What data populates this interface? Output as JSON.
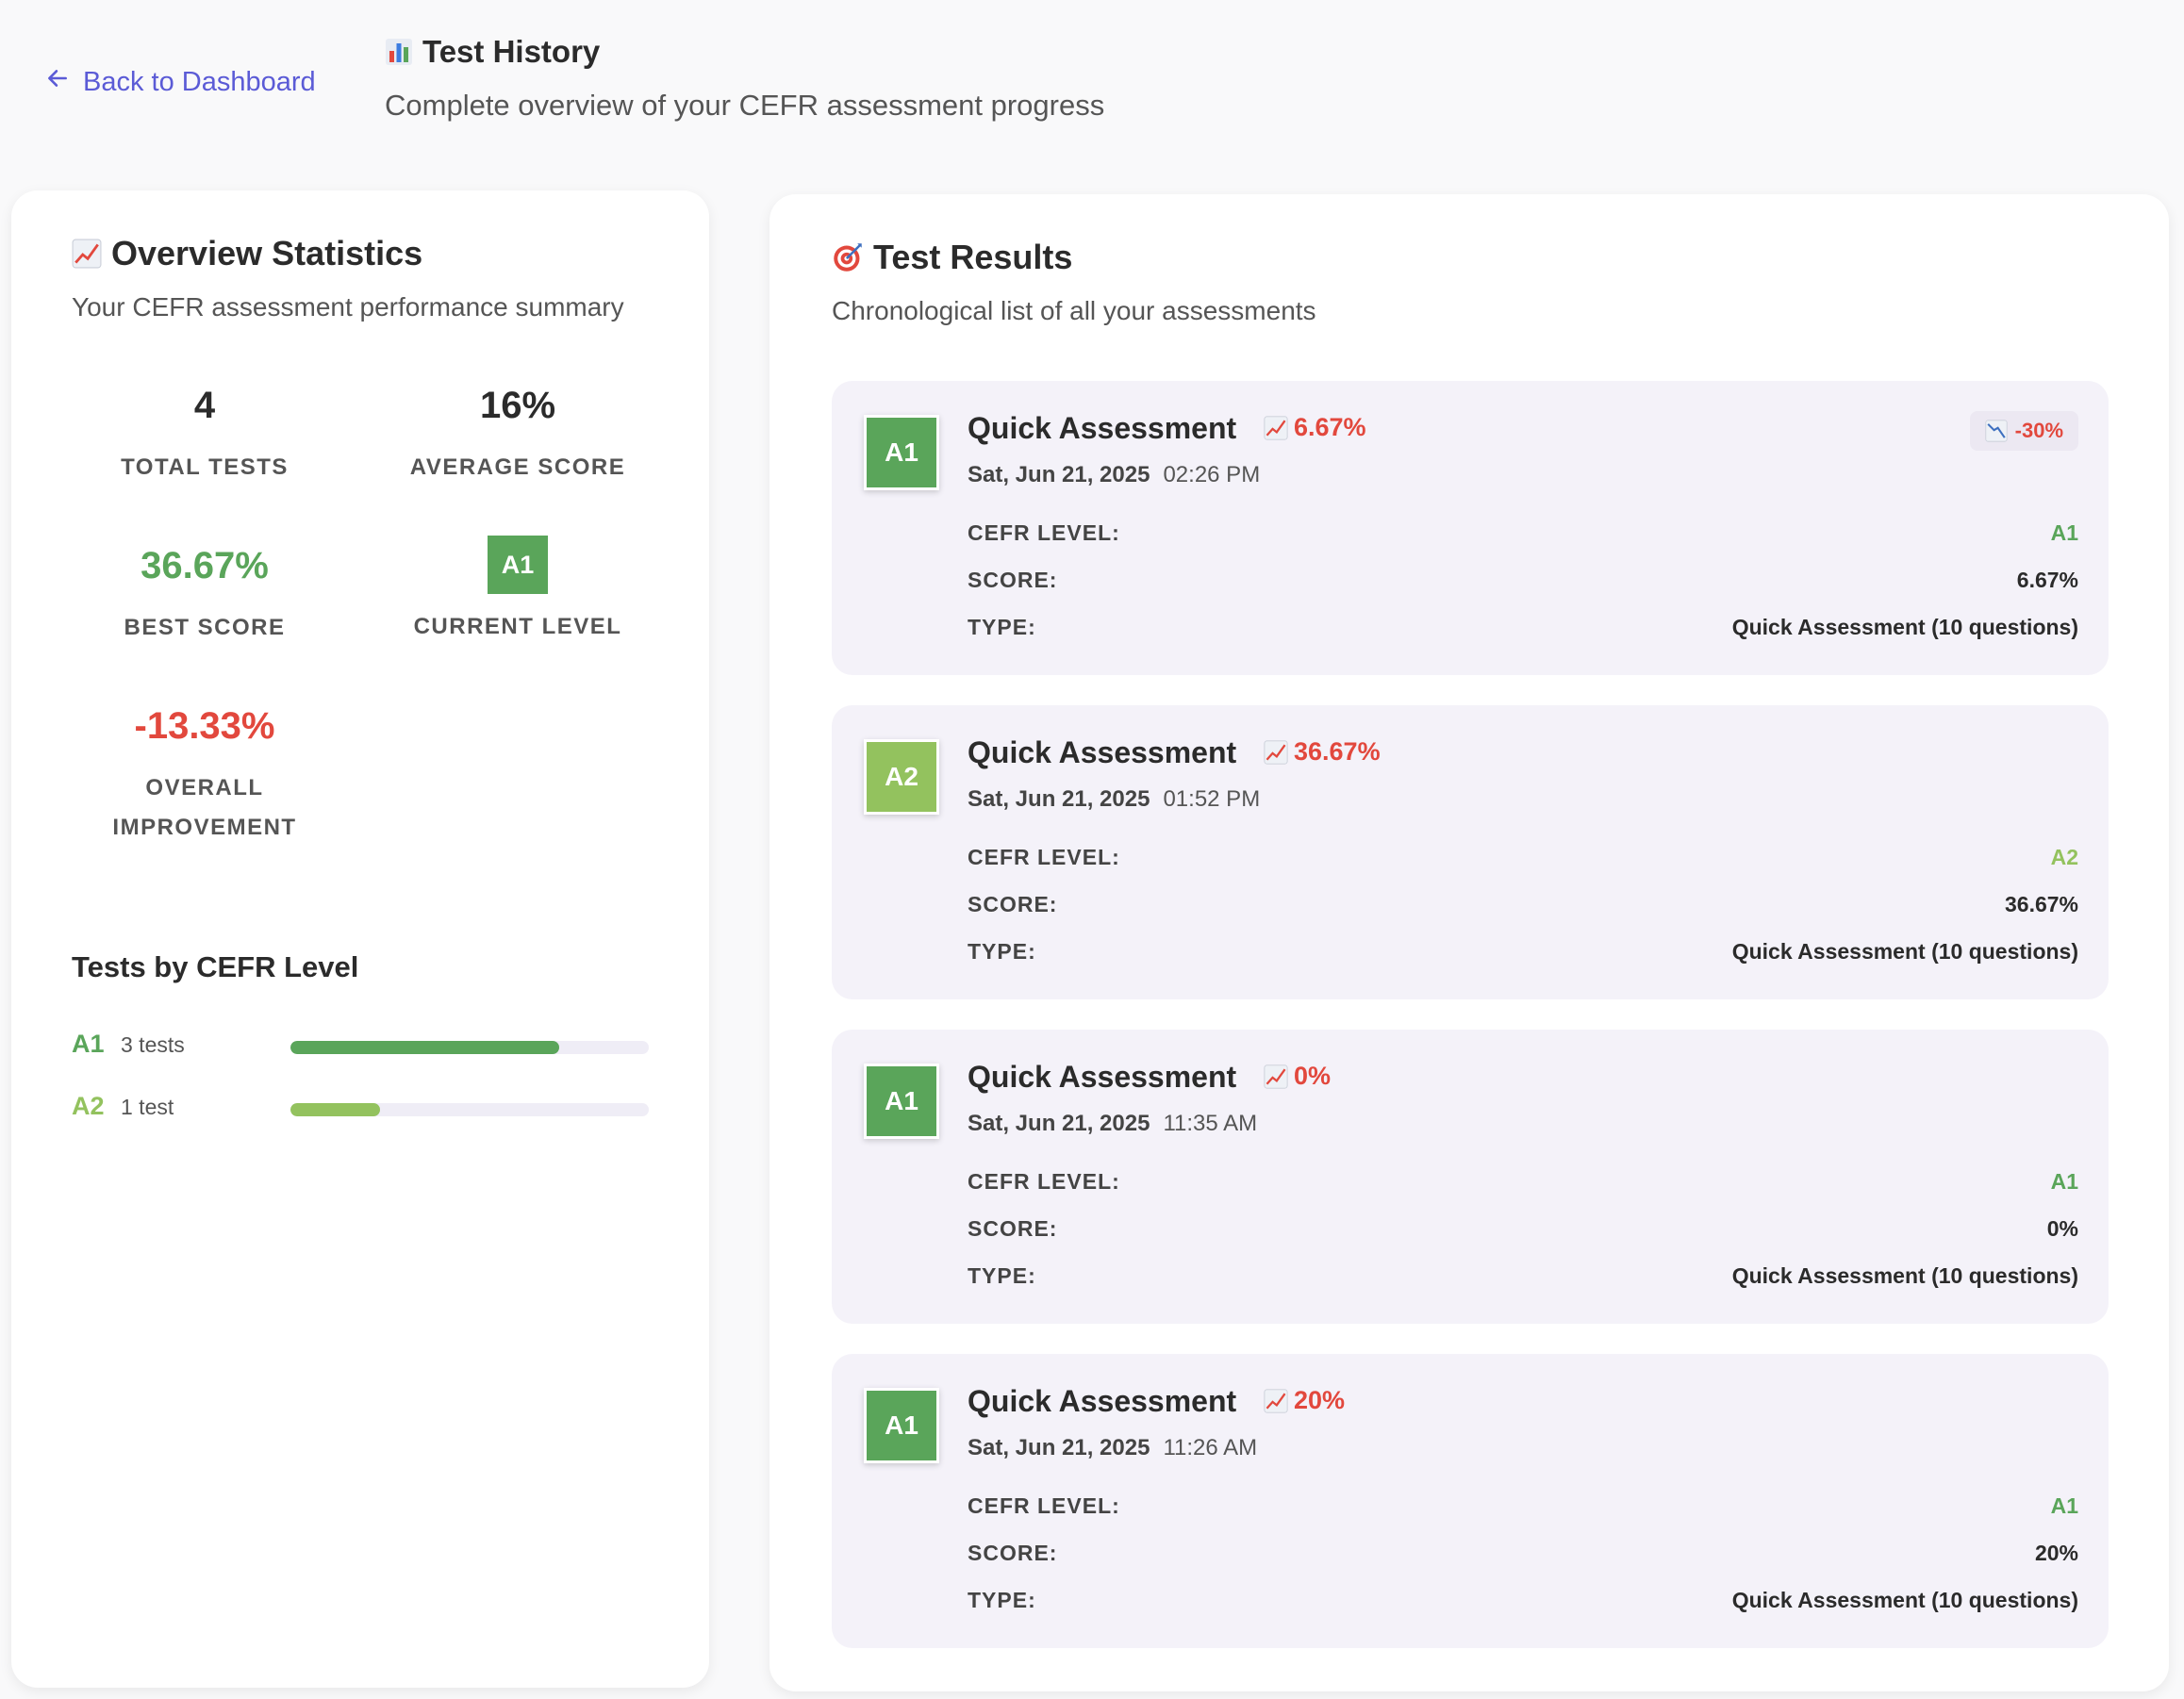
{
  "header": {
    "back_label": "Back to Dashboard",
    "title": "Test History",
    "subtitle": "Complete overview of your CEFR assessment progress"
  },
  "overview": {
    "title": "Overview Statistics",
    "subtitle": "Your CEFR assessment performance summary",
    "stats": {
      "total_tests": {
        "value": "4",
        "label": "TOTAL TESTS"
      },
      "average_score": {
        "value": "16%",
        "label": "AVERAGE SCORE"
      },
      "best_score": {
        "value": "36.67%",
        "label": "BEST SCORE"
      },
      "current_level": {
        "value": "A1",
        "label": "CURRENT LEVEL"
      },
      "overall_improvement": {
        "value": "-13.33%",
        "label_line1": "OVERALL",
        "label_line2": "IMPROVEMENT"
      }
    },
    "levels_title": "Tests by CEFR Level",
    "levels": [
      {
        "code": "A1",
        "count_label": "3 tests",
        "fraction": 0.75,
        "color": "#5aa55a"
      },
      {
        "code": "A2",
        "count_label": "1 test",
        "fraction": 0.25,
        "color": "#93c25e"
      }
    ]
  },
  "results": {
    "title": "Test Results",
    "subtitle": "Chronological list of all your assessments",
    "labels": {
      "level": "CEFR LEVEL:",
      "score": "SCORE:",
      "type": "TYPE:"
    },
    "items": [
      {
        "badge": "A1",
        "badge_color": "#5aa55a",
        "name": "Quick Assessment",
        "score": "6.67%",
        "date": "Sat, Jun 21, 2025",
        "time": "02:26 PM",
        "change": "-30%",
        "level": "A1",
        "level_color": "#5aa55a",
        "score_value": "6.67%",
        "type": "Quick Assessment (10 questions)"
      },
      {
        "badge": "A2",
        "badge_color": "#93c25e",
        "name": "Quick Assessment",
        "score": "36.67%",
        "date": "Sat, Jun 21, 2025",
        "time": "01:52 PM",
        "change": "",
        "level": "A2",
        "level_color": "#93c25e",
        "score_value": "36.67%",
        "type": "Quick Assessment (10 questions)"
      },
      {
        "badge": "A1",
        "badge_color": "#5aa55a",
        "name": "Quick Assessment",
        "score": "0%",
        "date": "Sat, Jun 21, 2025",
        "time": "11:35 AM",
        "change": "",
        "level": "A1",
        "level_color": "#5aa55a",
        "score_value": "0%",
        "type": "Quick Assessment (10 questions)"
      },
      {
        "badge": "A1",
        "badge_color": "#5aa55a",
        "name": "Quick Assessment",
        "score": "20%",
        "date": "Sat, Jun 21, 2025",
        "time": "11:26 AM",
        "change": "",
        "level": "A1",
        "level_color": "#5aa55a",
        "score_value": "20%",
        "type": "Quick Assessment (10 questions)"
      }
    ]
  }
}
